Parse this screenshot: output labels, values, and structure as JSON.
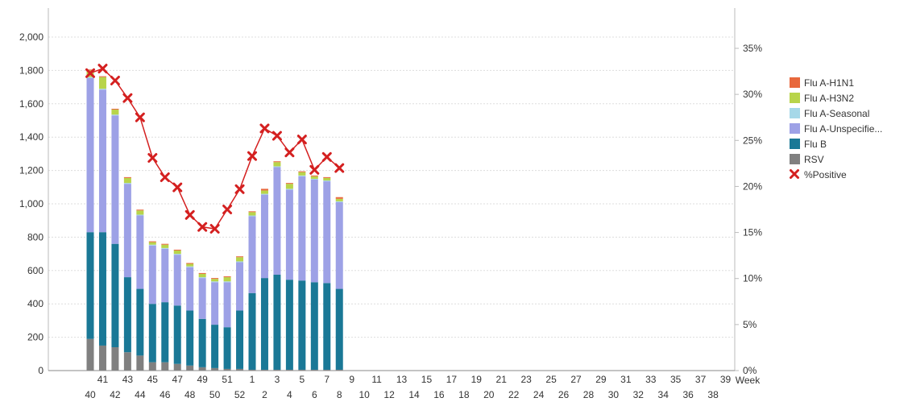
{
  "chart_data": {
    "type": "bar",
    "x_label_last": "Week",
    "weeks": [
      "40",
      "41",
      "42",
      "43",
      "44",
      "45",
      "46",
      "47",
      "48",
      "49",
      "50",
      "51",
      "52",
      "1",
      "2",
      "3",
      "4",
      "5",
      "6",
      "7",
      "8",
      "9",
      "10",
      "11",
      "12",
      "13",
      "14",
      "15",
      "16",
      "17",
      "18",
      "19",
      "20",
      "21",
      "22",
      "23",
      "24",
      "25",
      "26",
      "27",
      "28",
      "29",
      "30",
      "31",
      "32",
      "33",
      "34",
      "35",
      "36",
      "37",
      "38",
      "39"
    ],
    "y_left": {
      "min": 0,
      "max": 2000,
      "ticks": [
        0,
        200,
        400,
        600,
        800,
        1000,
        1200,
        1400,
        1600,
        1800,
        2000
      ],
      "tick_labels": [
        "0",
        "200",
        "400",
        "600",
        "800",
        "1,000",
        "1,200",
        "1,400",
        "1,600",
        "1,800",
        "2,000"
      ]
    },
    "y_right": {
      "min": 0,
      "max": 35,
      "ticks": [
        0,
        5,
        10,
        15,
        20,
        25,
        30,
        35
      ],
      "tick_labels": [
        "0%",
        "5%",
        "10%",
        "15%",
        "20%",
        "25%",
        "30%",
        "35%"
      ]
    },
    "grid": true,
    "legend_position": "right",
    "stacked_series": [
      {
        "name": "RSV",
        "color": "#808080",
        "values": [
          190,
          150,
          140,
          110,
          90,
          50,
          50,
          40,
          30,
          20,
          15,
          10,
          10,
          5,
          5,
          5,
          5,
          5,
          5,
          5,
          5
        ]
      },
      {
        "name": "Flu B",
        "color": "#1a7896",
        "values": [
          640,
          680,
          620,
          450,
          400,
          350,
          360,
          350,
          330,
          290,
          260,
          250,
          350,
          460,
          550,
          570,
          540,
          535,
          525,
          520,
          485
        ]
      },
      {
        "name": "Flu A-Unspecifie...",
        "color": "#9da1e6",
        "values": [
          925,
          855,
          770,
          560,
          440,
          350,
          320,
          305,
          260,
          245,
          255,
          270,
          290,
          460,
          500,
          645,
          540,
          625,
          615,
          610,
          520
        ]
      },
      {
        "name": "Flu A-Seasonal",
        "color": "#a6d8e8",
        "values": [
          5,
          5,
          5,
          5,
          5,
          5,
          5,
          5,
          5,
          5,
          5,
          5,
          5,
          5,
          5,
          5,
          5,
          5,
          5,
          5,
          5
        ]
      },
      {
        "name": "Flu A-H3N2",
        "color": "#b8d44a",
        "values": [
          40,
          70,
          30,
          30,
          25,
          15,
          20,
          20,
          15,
          20,
          15,
          25,
          25,
          20,
          20,
          25,
          30,
          20,
          15,
          15,
          15
        ]
      },
      {
        "name": "Flu A-H1N1",
        "color": "#e8683c",
        "values": [
          5,
          5,
          5,
          5,
          5,
          5,
          5,
          5,
          5,
          5,
          5,
          5,
          5,
          5,
          10,
          5,
          5,
          5,
          5,
          5,
          10
        ]
      }
    ],
    "line_series": {
      "name": "%Positive",
      "color": "#d42020",
      "axis": "right",
      "values": [
        32.3,
        32.8,
        31.5,
        29.6,
        27.5,
        23.1,
        21.0,
        19.9,
        16.9,
        15.6,
        15.4,
        17.5,
        19.7,
        23.3,
        26.3,
        25.5,
        23.7,
        25.1,
        21.8,
        23.2,
        22.0
      ]
    },
    "legend": [
      {
        "name": "Flu A-H1N1",
        "color": "#e8683c",
        "marker": "square"
      },
      {
        "name": "Flu A-H3N2",
        "color": "#b8d44a",
        "marker": "square"
      },
      {
        "name": "Flu A-Seasonal",
        "color": "#a6d8e8",
        "marker": "square"
      },
      {
        "name": "Flu A-Unspecifie...",
        "color": "#9da1e6",
        "marker": "square"
      },
      {
        "name": "Flu B",
        "color": "#1a7896",
        "marker": "square"
      },
      {
        "name": "RSV",
        "color": "#808080",
        "marker": "square"
      },
      {
        "name": "%Positive",
        "color": "#d42020",
        "marker": "x"
      }
    ]
  }
}
